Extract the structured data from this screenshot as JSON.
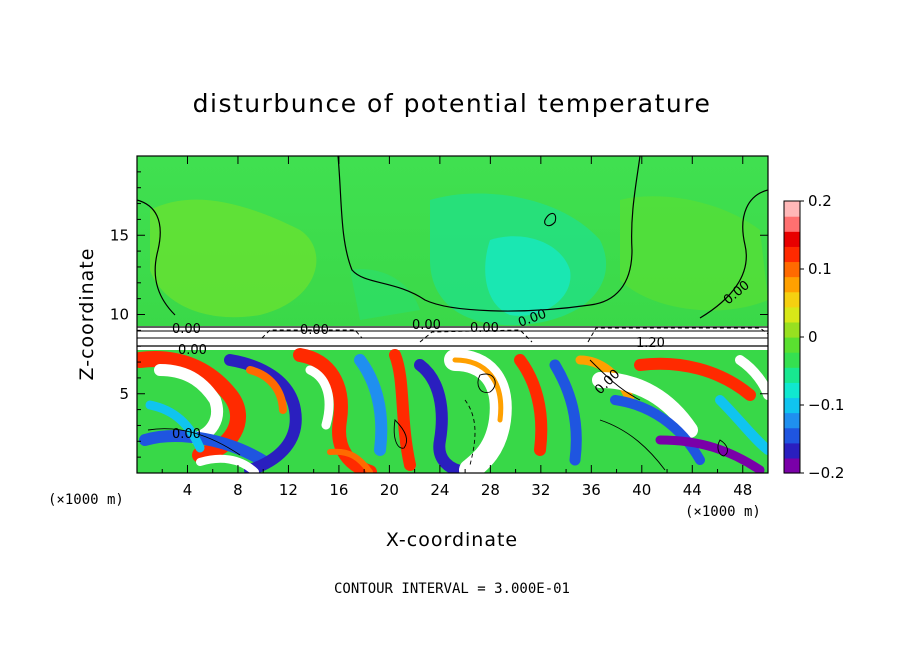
{
  "chart_data": {
    "type": "heatmap",
    "title": "disturbunce of potential temperature",
    "xlabel": "X-coordinate",
    "ylabel": "Z-coordinate",
    "x_unit": "(×1000 m)",
    "z_unit": "(×1000 m)",
    "xlim": [
      0,
      50
    ],
    "ylim": [
      0,
      20
    ],
    "xticks": [
      4,
      8,
      12,
      16,
      20,
      24,
      28,
      32,
      36,
      40,
      44,
      48
    ],
    "yticks": [
      5,
      10,
      15
    ],
    "colorbar": {
      "range": [
        -0.2,
        0.2
      ],
      "ticks": [
        0.2,
        0.1,
        0,
        -0.1,
        -0.2
      ],
      "tick_labels": [
        "0.2",
        "0.1",
        "0",
        "−0.1",
        "−0.2"
      ],
      "colors": [
        "#7a00a8",
        "#2a1fbf",
        "#1f55e0",
        "#1f8fef",
        "#10c4ef",
        "#10e8d0",
        "#18e890",
        "#35e050",
        "#5ae030",
        "#98e020",
        "#d8e818",
        "#f5d010",
        "#ffa000",
        "#ff6a00",
        "#ff2a00",
        "#e80000",
        "#ff7070",
        "#ffb8b8"
      ]
    },
    "contour_labels": [
      "0.00",
      "0.00",
      "0.00",
      "0.00",
      "0.00",
      "0.00",
      "0.00",
      "1.20",
      "0.00",
      "0.00"
    ],
    "contour_interval_text": "CONTOUR INTERVAL = 3.000E-01"
  }
}
